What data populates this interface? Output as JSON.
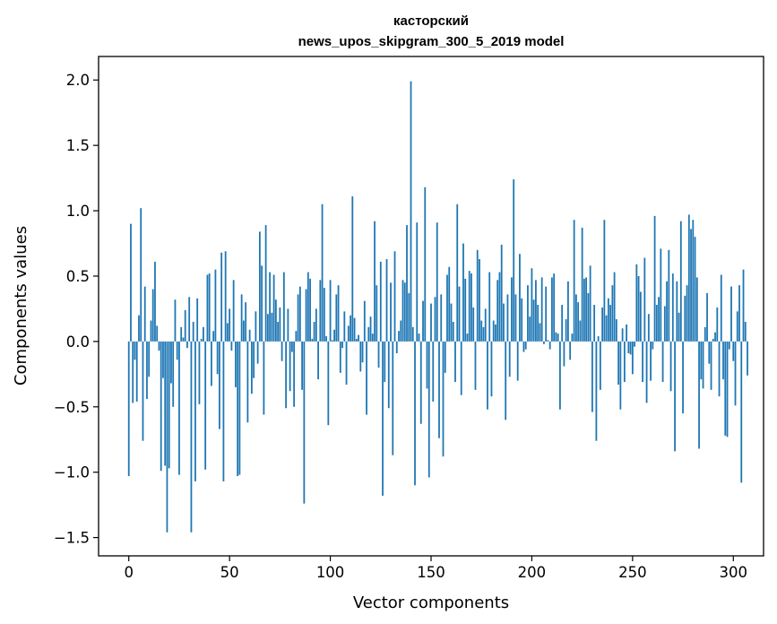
{
  "chart_data": {
    "type": "bar",
    "title": "касторский",
    "subtitle": "news_upos_skipgram_300_5_2019 model",
    "xlabel": "Vector components",
    "ylabel": "Components values",
    "xlim": [
      -15,
      315
    ],
    "ylim": [
      -1.64,
      2.18
    ],
    "xticks": [
      0,
      50,
      100,
      150,
      200,
      250,
      300
    ],
    "yticks": [
      -1.5,
      -1.0,
      -0.5,
      0.0,
      0.5,
      1.0,
      1.5,
      2.0
    ],
    "ytick_labels": [
      "−1.5",
      "−1.0",
      "−0.5",
      "0.0",
      "0.5",
      "1.0",
      "1.5",
      "2.0"
    ],
    "xtick_labels": [
      "0",
      "50",
      "100",
      "150",
      "200",
      "250",
      "300"
    ],
    "grid": false,
    "bar_color": "#1f77b4",
    "values": [
      -1.03,
      0.9,
      -0.47,
      -0.14,
      -0.46,
      0.2,
      1.02,
      -0.76,
      0.42,
      -0.44,
      -0.27,
      0.16,
      0.4,
      0.61,
      0.12,
      -0.07,
      -0.99,
      -0.28,
      -0.95,
      -1.46,
      -0.97,
      -0.32,
      -0.5,
      0.32,
      -0.14,
      -1.02,
      0.11,
      0.03,
      0.24,
      -0.05,
      0.34,
      -1.46,
      0.15,
      -1.07,
      0.33,
      -0.48,
      0.02,
      0.11,
      -0.98,
      0.51,
      0.52,
      -0.34,
      0.08,
      0.55,
      -0.25,
      -0.67,
      0.68,
      -1.07,
      0.69,
      0.14,
      0.25,
      -0.07,
      0.47,
      -0.35,
      -1.03,
      -1.02,
      0.36,
      0.16,
      0.3,
      -0.62,
      0.09,
      -0.4,
      -0.28,
      0.23,
      -0.17,
      0.84,
      0.58,
      -0.56,
      0.89,
      0.21,
      0.53,
      0.22,
      0.51,
      0.32,
      0.15,
      0.26,
      -0.15,
      0.53,
      -0.51,
      0.25,
      -0.38,
      -0.08,
      -0.5,
      0.08,
      0.36,
      0.42,
      -0.37,
      -1.24,
      0.4,
      0.53,
      0.48,
      0.02,
      0.15,
      0.25,
      -0.29,
      0.47,
      1.05,
      0.41,
      0.04,
      -0.64,
      0.47,
      0.01,
      0.09,
      0.36,
      0.43,
      -0.24,
      -0.05,
      0.23,
      -0.33,
      0.12,
      0.2,
      1.11,
      0.18,
      0.02,
      0.05,
      -0.23,
      -0.16,
      0.31,
      -0.56,
      0.11,
      0.19,
      0.06,
      0.92,
      0.43,
      -0.2,
      0.61,
      -1.18,
      -0.31,
      0.63,
      -0.51,
      0.45,
      -0.87,
      0.69,
      -0.09,
      0.08,
      0.16,
      0.47,
      0.45,
      0.89,
      0.37,
      1.99,
      0.11,
      -1.1,
      0.91,
      0.06,
      -0.63,
      0.31,
      1.18,
      -0.36,
      -1.04,
      0.29,
      -0.46,
      0.34,
      0.91,
      -0.74,
      0.36,
      -0.88,
      -0.24,
      0.51,
      0.57,
      0.29,
      0.15,
      -0.31,
      1.05,
      0.42,
      -0.41,
      0.75,
      0.48,
      0.06,
      0.54,
      0.52,
      0.26,
      -0.37,
      0.7,
      0.63,
      0.16,
      0.11,
      0.25,
      -0.52,
      0.53,
      -0.42,
      0.16,
      0.13,
      0.47,
      0.53,
      0.74,
      0.29,
      -0.6,
      0.36,
      -0.27,
      0.49,
      1.24,
      0.36,
      -0.3,
      0.67,
      0.33,
      -0.08,
      -0.06,
      0.43,
      0.19,
      0.56,
      0.32,
      0.47,
      0.28,
      0.14,
      0.49,
      -0.02,
      0.42,
      0.01,
      -0.06,
      0.49,
      0.52,
      0.07,
      0.06,
      -0.52,
      0.28,
      -0.19,
      0.17,
      0.46,
      -0.14,
      0.06,
      0.93,
      0.36,
      0.3,
      0.16,
      0.87,
      0.48,
      0.49,
      0.37,
      0.58,
      -0.54,
      0.28,
      -0.76,
      0.04,
      -0.37,
      0.26,
      0.93,
      0.2,
      0.33,
      0.28,
      0.43,
      0.53,
      0.17,
      -0.33,
      -0.52,
      0.1,
      -0.31,
      0.13,
      -0.09,
      -0.1,
      -0.25,
      -0.04,
      0.59,
      0.5,
      0.38,
      -0.31,
      0.64,
      -0.47,
      0.21,
      -0.3,
      -0.06,
      0.96,
      0.28,
      0.34,
      0.71,
      -0.31,
      0.27,
      0.46,
      0.7,
      -0.38,
      0.52,
      -0.84,
      0.46,
      0.22,
      0.92,
      -0.55,
      0.35,
      0.43,
      0.97,
      0.86,
      0.93,
      0.8,
      0.49,
      -0.82,
      -0.29,
      -0.36,
      0.11,
      0.37,
      -0.17,
      -0.37,
      0.02,
      0.07,
      0.26,
      -0.42,
      0.51,
      -0.29,
      -0.72,
      -0.73,
      -0.06,
      0.42,
      -0.15,
      -0.49,
      0.23,
      0.43,
      -1.08,
      0.55,
      0.15,
      -0.26
    ]
  }
}
